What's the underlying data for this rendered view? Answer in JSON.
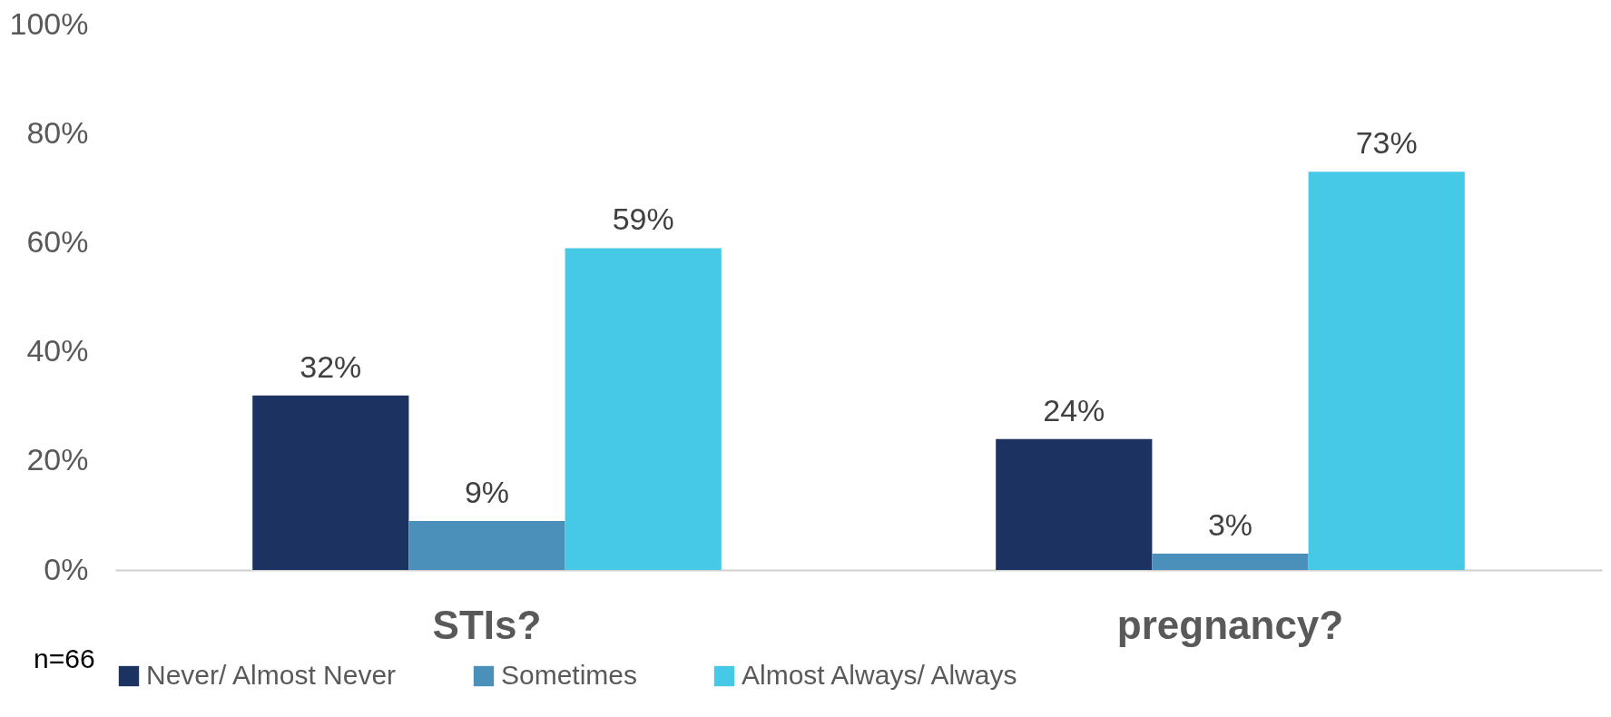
{
  "chart_data": {
    "type": "bar",
    "categories": [
      "STIs?",
      "pregnancy?"
    ],
    "series": [
      {
        "name": "Never/ Almost Never",
        "color": "#1c3260",
        "values": [
          32,
          24
        ],
        "value_labels": [
          "32%",
          "24%"
        ]
      },
      {
        "name": "Sometimes",
        "color": "#4a90bb",
        "values": [
          9,
          3
        ],
        "value_labels": [
          "9%",
          "3%"
        ]
      },
      {
        "name": "Almost Always/ Always",
        "color": "#45c9e6",
        "values": [
          59,
          73
        ],
        "value_labels": [
          "59%",
          "73%"
        ]
      }
    ],
    "ylim": [
      0,
      100
    ],
    "yticks": [
      {
        "value": 0,
        "label": "0%"
      },
      {
        "value": 20,
        "label": "20%"
      },
      {
        "value": 40,
        "label": "40%"
      },
      {
        "value": 60,
        "label": "60%"
      },
      {
        "value": 80,
        "label": "80%"
      },
      {
        "value": 100,
        "label": "100%"
      }
    ],
    "grid": false,
    "legend": "bottom",
    "annotations": [
      "n=66"
    ]
  }
}
